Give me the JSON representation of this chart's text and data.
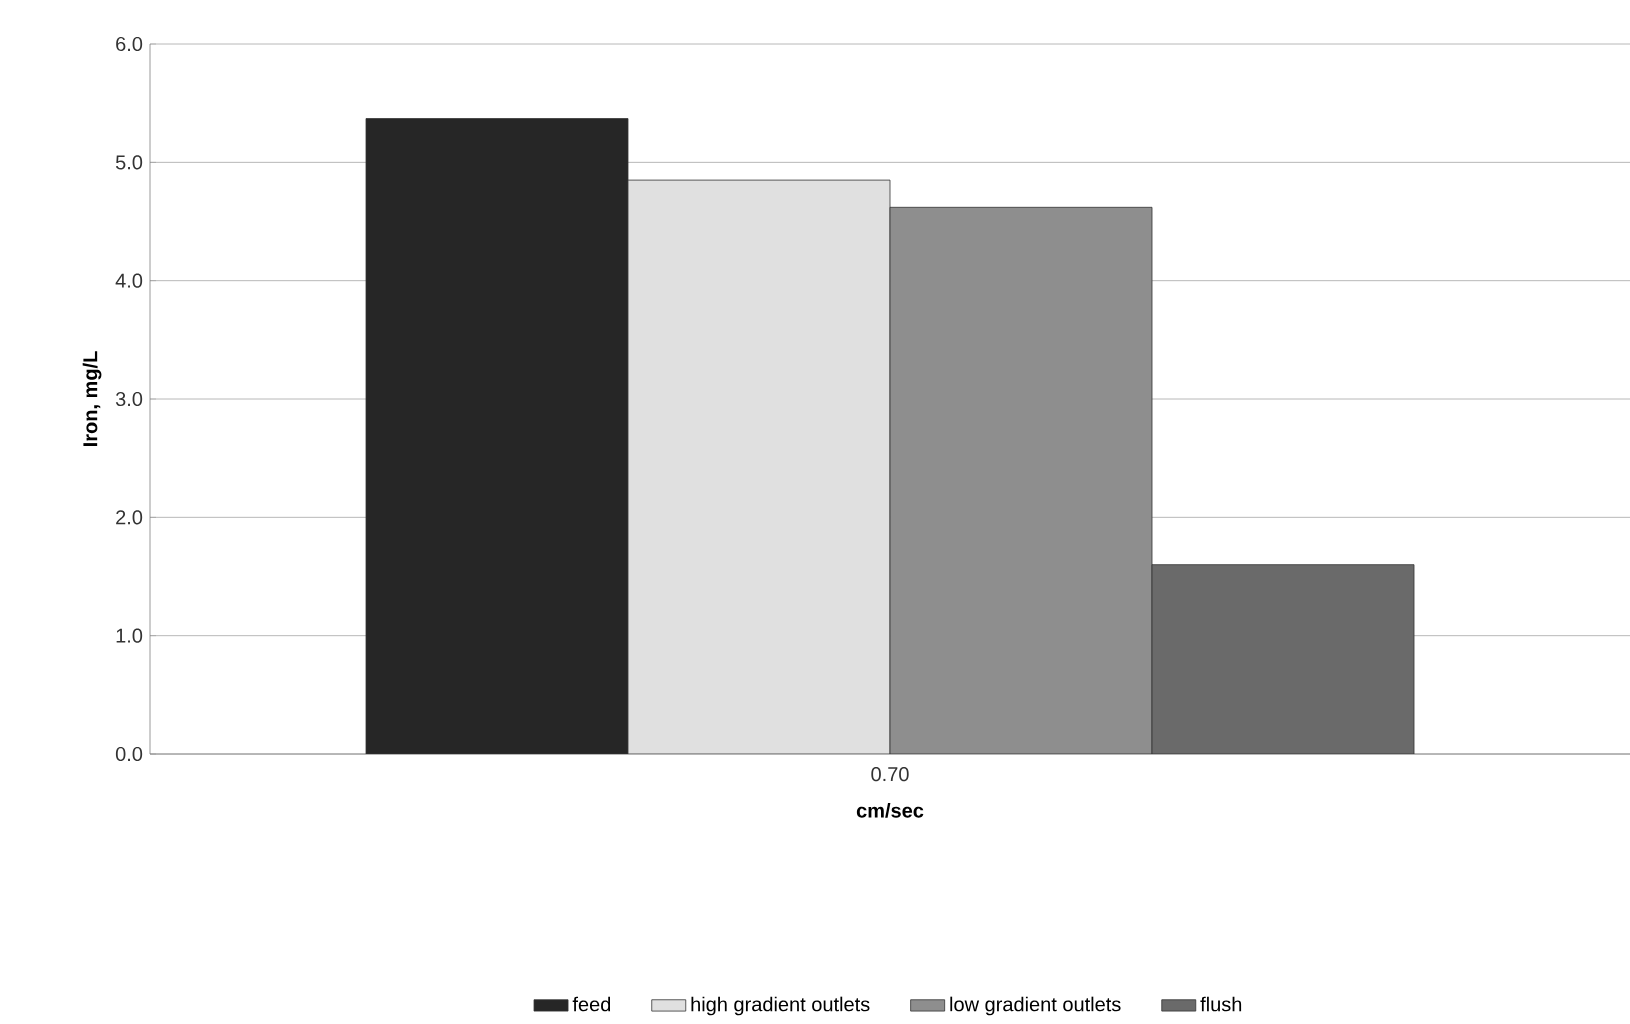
{
  "chart_data": {
    "type": "bar",
    "xlabel": "cm/sec",
    "ylabel": "Iron, mg/L",
    "categories": [
      "0.70"
    ],
    "series": [
      {
        "name": "feed",
        "color": "#262626",
        "values": [
          5.37
        ]
      },
      {
        "name": "high gradient outlets",
        "color": "#e0e0e0",
        "values": [
          4.85
        ]
      },
      {
        "name": "low gradient outlets",
        "color": "#8e8e8e",
        "values": [
          4.62
        ]
      },
      {
        "name": "flush",
        "color": "#6a6a6a",
        "values": [
          1.6
        ]
      }
    ],
    "ylim": [
      0,
      6
    ],
    "yticks": [
      {
        "value": 0,
        "label": "0.0"
      },
      {
        "value": 1,
        "label": "1.0"
      },
      {
        "value": 2,
        "label": "2.0"
      },
      {
        "value": 3,
        "label": "3.0"
      },
      {
        "value": 4,
        "label": "4.0"
      },
      {
        "value": 5,
        "label": "5.0"
      },
      {
        "value": 6,
        "label": "6.0"
      }
    ],
    "grid": "y",
    "legend": "bottom"
  }
}
